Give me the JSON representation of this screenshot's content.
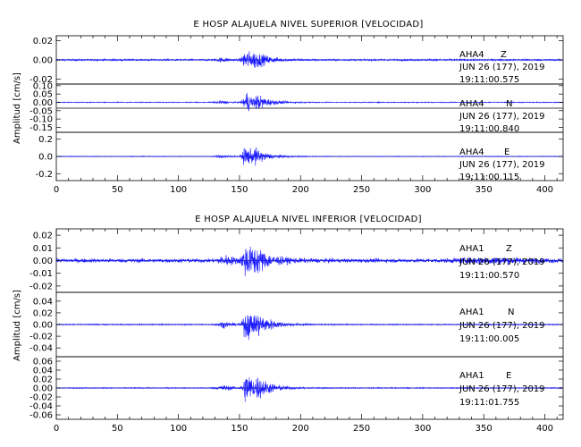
{
  "chart_data": [
    {
      "type": "line",
      "title": "E HOSP ALAJUELA NIVEL SUPERIOR [VELOCIDAD]",
      "ylabel": "Amplitud [cm/s]",
      "x_tick_labels": [
        "0",
        "50",
        "100",
        "150",
        "200",
        "250",
        "300",
        "350",
        "400"
      ],
      "xlim": [
        0,
        415
      ],
      "x_ticks": [
        0,
        50,
        100,
        150,
        200,
        250,
        300,
        350,
        400
      ],
      "trace_color": "#1a1aff",
      "panels": [
        {
          "station": "AHA4",
          "component": "Z",
          "date": "JUN 26 (177), 2019",
          "time": "19:11:00.575",
          "ylim": [
            -0.025,
            0.025
          ],
          "y_ticks": [
            0.02,
            0.0,
            -0.02
          ],
          "y_tick_labels": [
            "0.02",
            "0.00",
            "-0.02"
          ],
          "series": [
            {
              "noise_amplitude": 0.0015,
              "events": [
                {
                  "x": 155.5,
                  "peak": 0.018,
                  "decay": 7,
                  "rise": 3
                },
                {
                  "x": 163,
                  "peak": 0.009,
                  "decay": 12,
                  "rise": 2
                },
                {
                  "x": 137,
                  "peak": 0.003,
                  "decay": 6,
                  "rise": 6
                }
              ]
            }
          ]
        },
        {
          "station": "AHA4",
          "component": "N",
          "date": "JUN 26 (177), 2019",
          "time": "19:11:00.840",
          "ylim": [
            -0.18,
            0.11
          ],
          "y_ticks": [
            0.1,
            0.05,
            0.0,
            -0.05,
            -0.1,
            -0.15
          ],
          "y_tick_labels": [
            "0.10",
            "0.05",
            "0.00",
            "-0.05",
            "-0.10",
            "-0.15"
          ],
          "series": [
            {
              "noise_amplitude": 0.004,
              "events": [
                {
                  "x": 156,
                  "peak": 0.1,
                  "decay": 7,
                  "rise": 3
                },
                {
                  "x": 165,
                  "peak": 0.05,
                  "decay": 12,
                  "rise": 2
                },
                {
                  "x": 136,
                  "peak": 0.015,
                  "decay": 6,
                  "rise": 6
                }
              ]
            }
          ]
        },
        {
          "station": "AHA4",
          "component": "E",
          "date": "JUN 26 (177), 2019",
          "time": "19:11:00.115",
          "ylim": [
            -0.28,
            0.28
          ],
          "y_ticks": [
            0.2,
            0.0,
            -0.2
          ],
          "y_tick_labels": [
            "0.2",
            "0.0",
            "-0.2"
          ],
          "series": [
            {
              "noise_amplitude": 0.006,
              "events": [
                {
                  "x": 155.5,
                  "peak": 0.2,
                  "decay": 7,
                  "rise": 3
                },
                {
                  "x": 163,
                  "peak": 0.1,
                  "decay": 12,
                  "rise": 2
                },
                {
                  "x": 137,
                  "peak": 0.03,
                  "decay": 6,
                  "rise": 6
                }
              ]
            }
          ]
        }
      ]
    },
    {
      "type": "line",
      "title": "E HOSP ALAJUELA NIVEL INFERIOR [VELOCIDAD]",
      "ylabel": "Amplitud [cm/s]",
      "x_tick_labels": [
        "0",
        "50",
        "100",
        "150",
        "200",
        "250",
        "300",
        "350",
        "400"
      ],
      "xlim": [
        0,
        415
      ],
      "x_ticks": [
        0,
        50,
        100,
        150,
        200,
        250,
        300,
        350,
        400
      ],
      "trace_color": "#1a1aff",
      "panels": [
        {
          "station": "AHA1",
          "component": "Z",
          "date": "JUN 26 (177), 2019",
          "time": "19:11:00.570",
          "ylim": [
            -0.025,
            0.025
          ],
          "y_ticks": [
            0.02,
            0.01,
            0.0,
            -0.01,
            -0.02
          ],
          "y_tick_labels": [
            "0.02",
            "0.01",
            "0.00",
            "-0.01",
            "-0.02"
          ],
          "series": [
            {
              "noise_amplitude": 0.0025,
              "events": [
                {
                  "x": 155.5,
                  "peak": 0.021,
                  "decay": 8,
                  "rise": 3
                },
                {
                  "x": 163,
                  "peak": 0.01,
                  "decay": 14,
                  "rise": 2
                },
                {
                  "x": 140,
                  "peak": 0.005,
                  "decay": 8,
                  "rise": 7
                },
                {
                  "x": 360,
                  "peak": 0.003,
                  "decay": 30,
                  "rise": 30
                }
              ]
            }
          ]
        },
        {
          "station": "AHA1",
          "component": "N",
          "date": "JUN 26 (177), 2019",
          "time": "19:11:00.005",
          "ylim": [
            -0.055,
            0.055
          ],
          "y_ticks": [
            0.04,
            0.02,
            0.0,
            -0.02,
            -0.04
          ],
          "y_tick_labels": [
            "0.04",
            "0.02",
            "0.00",
            "-0.02",
            "-0.04"
          ],
          "series": [
            {
              "noise_amplitude": 0.0015,
              "events": [
                {
                  "x": 156,
                  "peak": 0.045,
                  "decay": 8,
                  "rise": 3
                },
                {
                  "x": 165,
                  "peak": 0.02,
                  "decay": 14,
                  "rise": 2
                },
                {
                  "x": 138,
                  "peak": 0.008,
                  "decay": 7,
                  "rise": 6
                }
              ]
            }
          ]
        },
        {
          "station": "AHA1",
          "component": "E",
          "date": "JUN 26 (177), 2019",
          "time": "19:11:01.755",
          "ylim": [
            -0.07,
            0.07
          ],
          "y_ticks": [
            0.06,
            0.04,
            0.02,
            0.0,
            -0.02,
            -0.04,
            -0.06
          ],
          "y_tick_labels": [
            "0.06",
            "0.04",
            "0.02",
            "0.00",
            "-0.02",
            "-0.04",
            "-0.06"
          ],
          "series": [
            {
              "noise_amplitude": 0.0018,
              "events": [
                {
                  "x": 156,
                  "peak": 0.06,
                  "decay": 8,
                  "rise": 3
                },
                {
                  "x": 165,
                  "peak": 0.025,
                  "decay": 14,
                  "rise": 2
                },
                {
                  "x": 138,
                  "peak": 0.01,
                  "decay": 7,
                  "rise": 6
                }
              ]
            }
          ]
        }
      ]
    }
  ]
}
